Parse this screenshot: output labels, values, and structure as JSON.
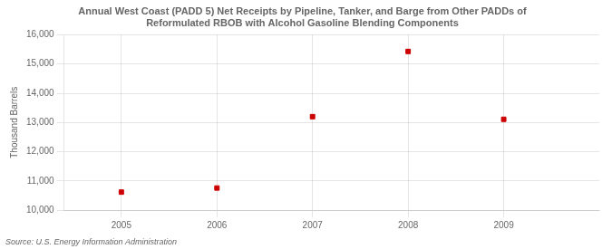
{
  "chart_data": {
    "type": "scatter",
    "title": "Annual West Coast (PADD 5) Net Receipts by Pipeline, Tanker, and Barge from Other PADDs of\nReformulated RBOB with Alcohol Gasoline Blending Components",
    "y_label": "Thousand Barrels",
    "source": "Source: U.S. Energy Information Administration",
    "x": [
      2005,
      2006,
      2007,
      2008,
      2009
    ],
    "values": [
      10620,
      10760,
      13200,
      15430,
      13110
    ],
    "color": "#cc0000",
    "marker": "square",
    "xlim": [
      2004.4,
      2010.0
    ],
    "xticks": [
      2005,
      2006,
      2007,
      2008,
      2009
    ],
    "ylim": [
      10000,
      16000
    ],
    "yticks": [
      {
        "value": 10000,
        "label": "10,000"
      },
      {
        "value": 11000,
        "label": "11,000"
      },
      {
        "value": 12000,
        "label": "12,000"
      },
      {
        "value": 13000,
        "label": "13,000"
      },
      {
        "value": 14000,
        "label": "14,000"
      },
      {
        "value": 15000,
        "label": "15,000"
      },
      {
        "value": 16000,
        "label": "16,000"
      }
    ],
    "grid": true
  }
}
